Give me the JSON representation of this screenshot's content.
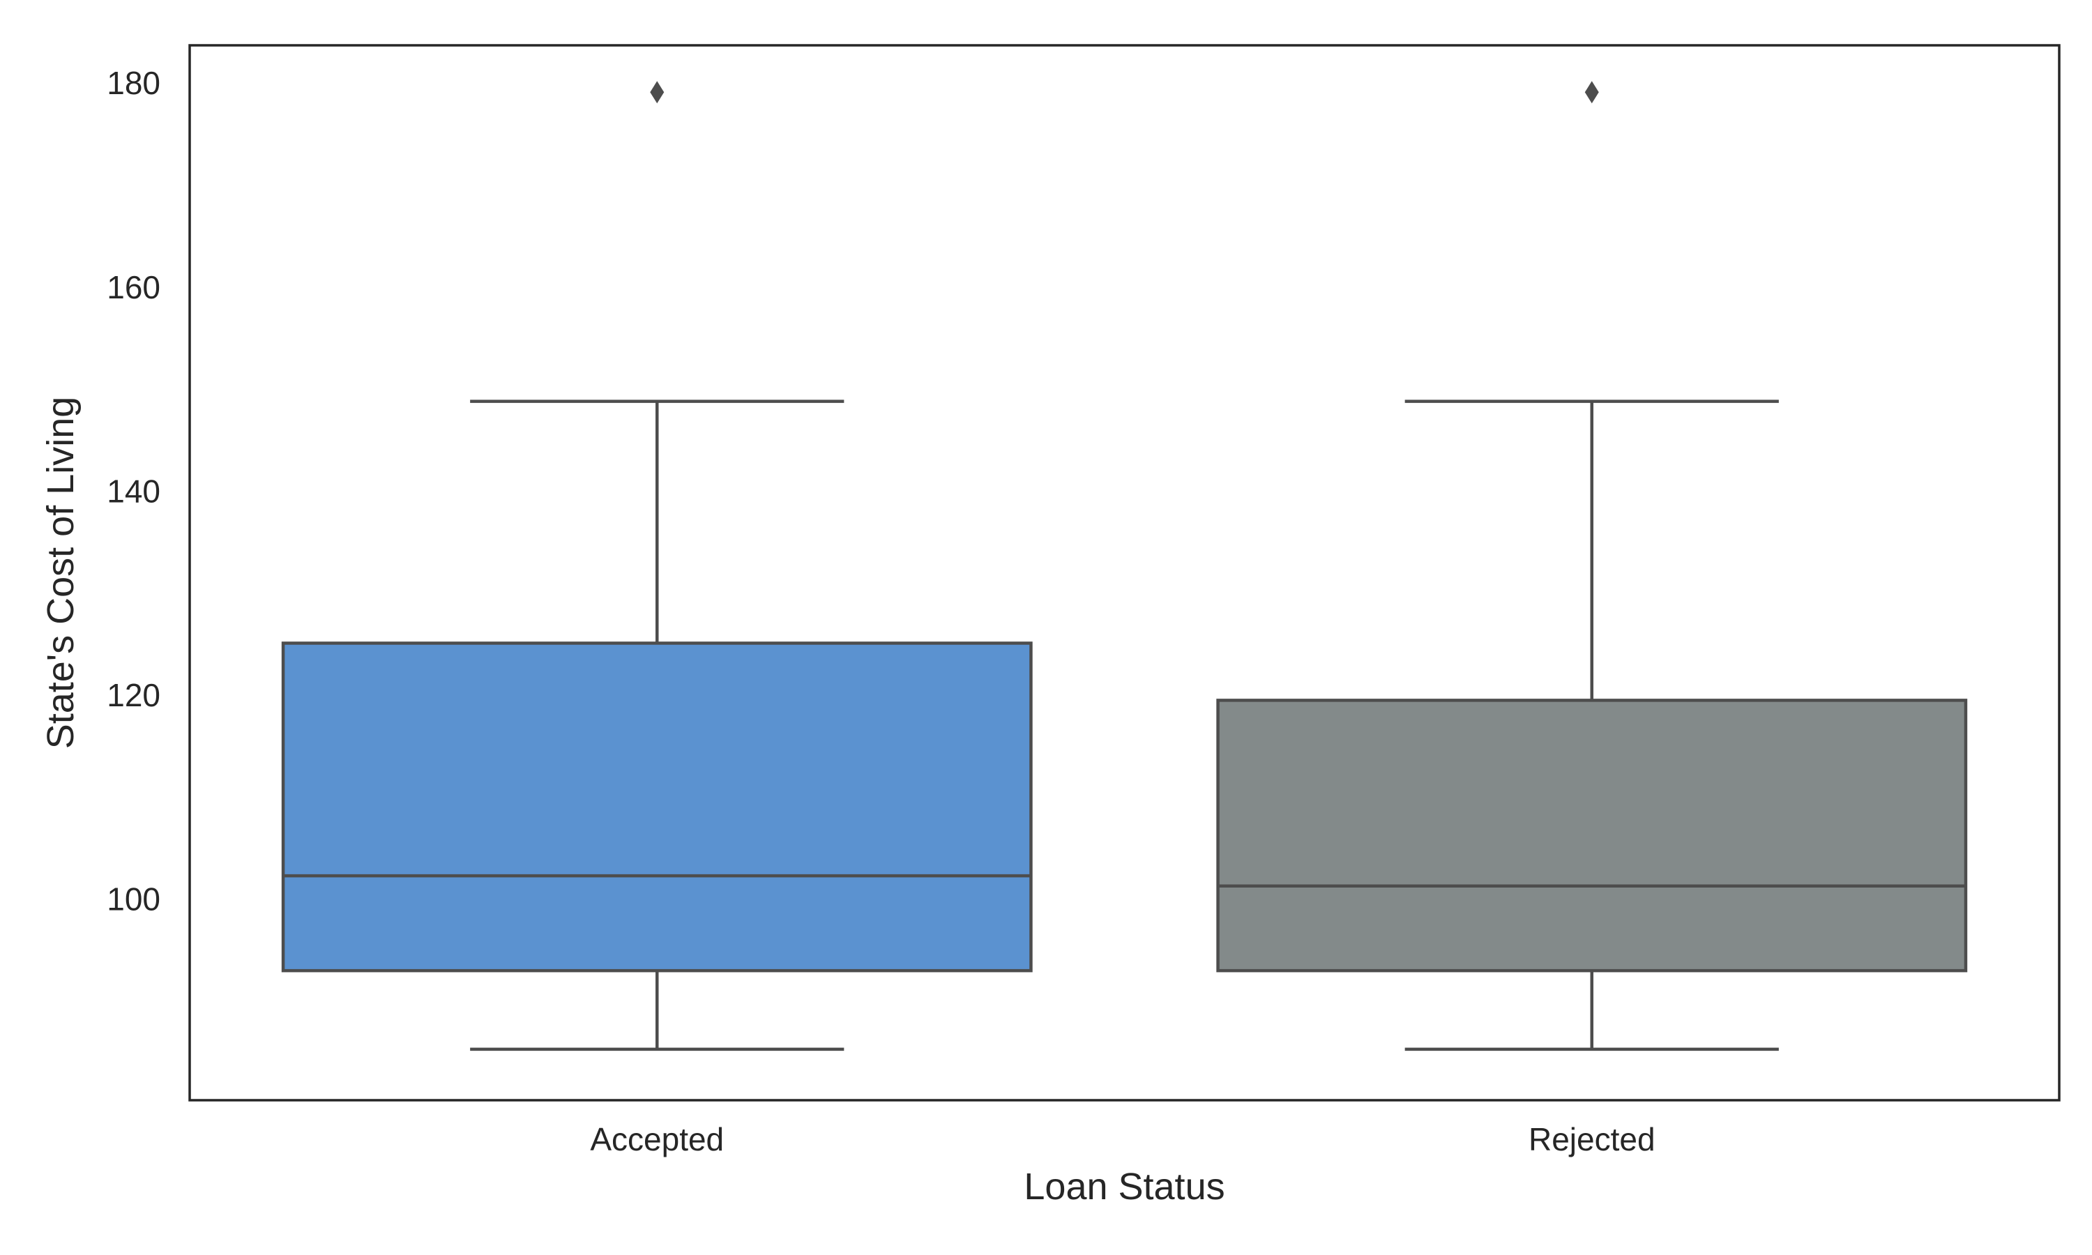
{
  "chart_data": {
    "type": "box",
    "title": "",
    "xlabel": "Loan Status",
    "ylabel": "State's Cost of Living",
    "categories": [
      "Accepted",
      "Rejected"
    ],
    "ylim": [
      80.3,
      183.7
    ],
    "yticks": [
      100,
      120,
      140,
      160,
      180
    ],
    "grid": false,
    "legend": "none",
    "boxes": [
      {
        "category": "Accepted",
        "color": "#5b92d0",
        "whisker_low": 85.3,
        "q1": 93.0,
        "median": 102.3,
        "q3": 125.1,
        "whisker_high": 148.8,
        "outliers": [
          179.1
        ]
      },
      {
        "category": "Rejected",
        "color": "#838a8a",
        "whisker_low": 85.3,
        "q1": 93.0,
        "median": 101.3,
        "q3": 119.5,
        "whisker_high": 148.8,
        "outliers": [
          179.1
        ]
      }
    ],
    "line_color": "#4d4d4d",
    "frame_color": "#262626"
  }
}
